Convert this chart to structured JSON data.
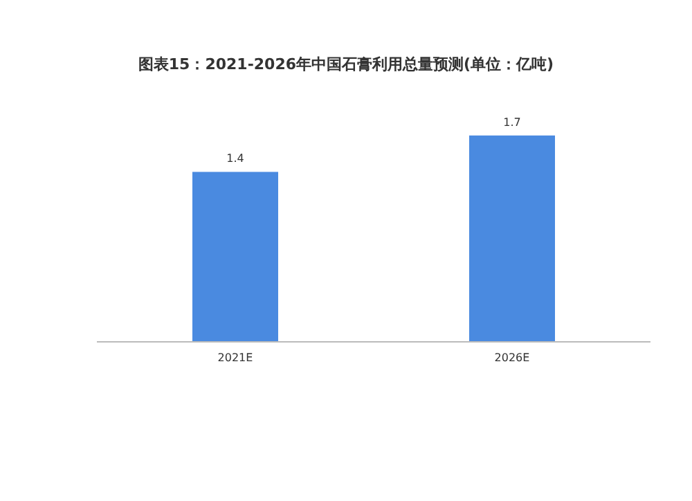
{
  "chart_data": {
    "type": "bar",
    "title": "图表15：2021-2026年中国石膏利用总量预测(单位：亿吨)",
    "categories": [
      "2021E",
      "2026E"
    ],
    "values": [
      1.4,
      1.7
    ],
    "color": "#4a8ae0",
    "data_labels": true
  }
}
